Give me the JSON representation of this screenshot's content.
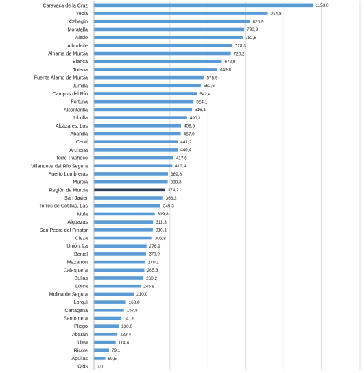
{
  "chart_data": {
    "type": "bar",
    "orientation": "horizontal",
    "categories": [
      "Caravaca de la Cruz",
      "Yecla",
      "Cehegín",
      "Moratalla",
      "Aledo",
      "Albudeite",
      "Alhama de Murcia",
      "Blanca",
      "Totana",
      "Fuente Álamo de Murcia",
      "Jumilla",
      "Campos del Río",
      "Fortuna",
      "Alcantarilla",
      "Librilla",
      "Alcázares, Los",
      "Abanilla",
      "Ceutí",
      "Archena",
      "Torre-Pacheco",
      "Villanueva del Río Segura",
      "Puerto Lumbreras",
      "Murcia",
      "Región de Murcia",
      "San Javier",
      "Torres de Cotillas, Las",
      "Mula",
      "Alguazas",
      "San Pedro del Pinatar",
      "Cieza",
      "Unión, La",
      "Beniel",
      "Mazarrón",
      "Calasparra",
      "Bullas",
      "Lorca",
      "Molina de Segura",
      "Lorquí",
      "Cartagena",
      "Santomera",
      "Pliego",
      "Abarán",
      "Ulea",
      "Ricote",
      "Águilas",
      "Ojós"
    ],
    "values": [
      1153.0,
      914.8,
      820.9,
      790.9,
      782.8,
      728.3,
      720.2,
      672.9,
      649.8,
      578.9,
      562.5,
      542.4,
      524.1,
      516.1,
      490.1,
      458.5,
      457.0,
      441.2,
      440.4,
      417.6,
      412.4,
      389.8,
      388.3,
      374.2,
      363.2,
      349.3,
      319.8,
      311.3,
      310.1,
      305.8,
      276.9,
      273.9,
      270.1,
      265.3,
      260.2,
      245.8,
      210.0,
      168.0,
      157.8,
      141.9,
      130.0,
      123.4,
      114.4,
      79.1,
      59.5,
      0.0
    ],
    "value_labels": [
      "1153,0",
      "914,8",
      "820,9",
      "790,9",
      "782,8",
      "728,3",
      "720,2",
      "672,9",
      "649,8",
      "578,9",
      "562,5",
      "542,4",
      "524,1",
      "516,1",
      "490,1",
      "458,5",
      "457,0",
      "441,2",
      "440,4",
      "417,6",
      "412,4",
      "389,8",
      "388,3",
      "374,2",
      "363,2",
      "349,3",
      "319,8",
      "311,3",
      "310,1",
      "305,8",
      "276,9",
      "273,9",
      "270,1",
      "265,3",
      "260,2",
      "245,8",
      "210,0",
      "168,0",
      "157,8",
      "141,9",
      "130,0",
      "123,4",
      "114,4",
      "79,1",
      "59,5",
      "0,0"
    ],
    "highlight_category": "Región de Murcia",
    "xlim": [
      0,
      1400
    ],
    "grid": true,
    "title": "",
    "xlabel": "",
    "ylabel": "",
    "colors": {
      "bar": "#5b9bd5",
      "highlight": "#2e4057",
      "grid": "#d6d6d6",
      "text": "#222222"
    }
  }
}
